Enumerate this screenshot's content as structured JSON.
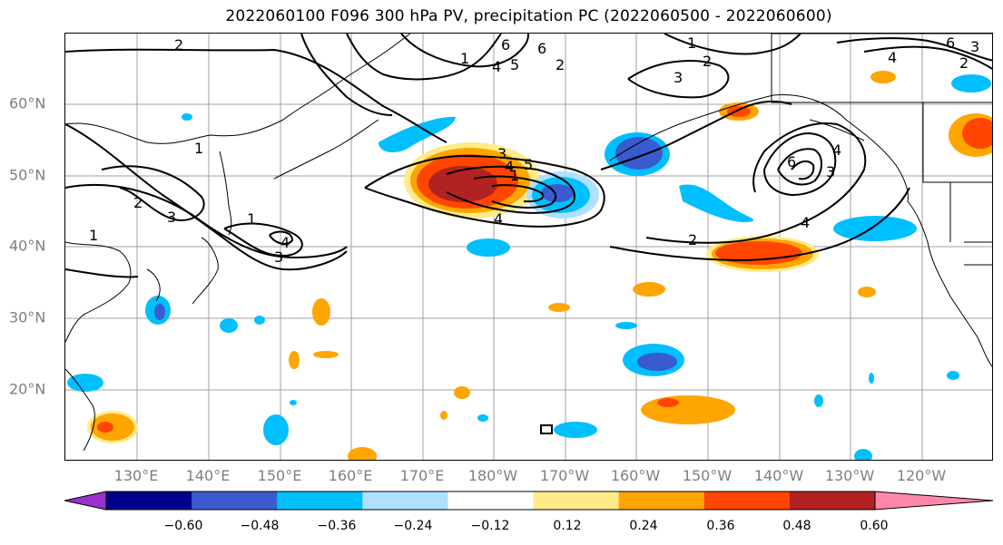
{
  "title": "2022060100 F096 300 hPa PV, precipitation PC (2022060500 - 2022060600)",
  "lat_labels": [
    "60°N",
    "50°N",
    "40°N",
    "30°N",
    "20°N"
  ],
  "lon_labels": [
    "130°E",
    "140°E",
    "150°E",
    "160°E",
    "170°E",
    "180°W",
    "170°W",
    "160°W",
    "150°W",
    "140°W",
    "130°W",
    "120°W"
  ],
  "colorbar": {
    "ticks": [
      "−0.60",
      "−0.48",
      "−0.36",
      "−0.24",
      "−0.12",
      "0.12",
      "0.24",
      "0.36",
      "0.48",
      "0.60"
    ],
    "colors": [
      "#9932cc",
      "#00008b",
      "#3a5bcf",
      "#00bfff",
      "#b0e0ff",
      "#ffffff",
      "#ffeb88",
      "#ffa500",
      "#ff4500",
      "#b22222",
      "#ff88aa"
    ]
  },
  "contour_labels": [
    "2",
    "2",
    "1",
    "3",
    "2",
    "6",
    "1",
    "6",
    "4",
    "5",
    "1",
    "2",
    "3",
    "4",
    "1",
    "3",
    "1",
    "4",
    "3",
    "4",
    "2",
    "3",
    "1",
    "5",
    "6",
    "4",
    "4",
    "2",
    "4",
    "3",
    "6"
  ],
  "colors": {
    "contour": "#000000",
    "grid": "#a0a0a0",
    "coast": "#000000"
  }
}
